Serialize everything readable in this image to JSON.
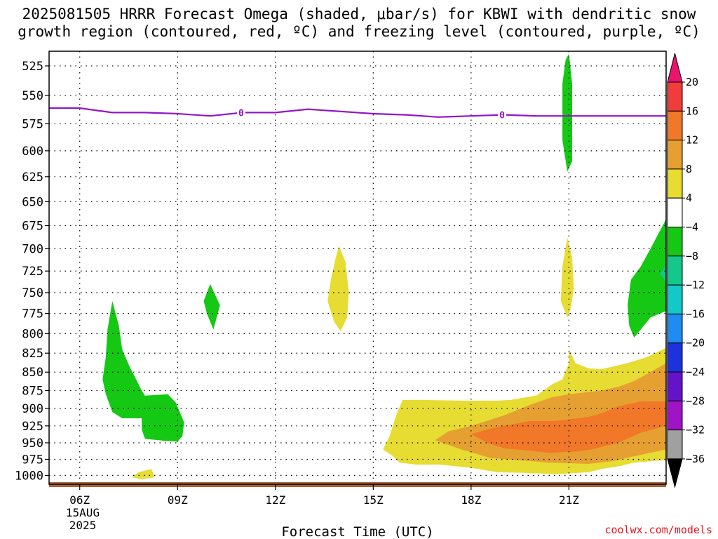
{
  "title": "2025081505 HRRR Forecast Omega (shaded, μbar/s) for KBWI with dendritic snow\ngrowth region (contoured, red, ºC) and freezing level (contoured, purple, ºC)",
  "credit": "coolwx.com/models",
  "chart_data": {
    "type": "area",
    "title": "2025081505 HRRR Forecast Omega (shaded, μbar/s) for KBWI with dendritic snow growth region (contoured, red, ºC) and freezing level (contoured, purple, ºC)",
    "xlabel": "Forecast Time (UTC)",
    "ylabel": "",
    "x_ticks": [
      "06Z",
      "09Z",
      "12Z",
      "15Z",
      "18Z",
      "21Z"
    ],
    "x_tick_hours": [
      6,
      9,
      12,
      15,
      18,
      21
    ],
    "x_date_label": [
      "15AUG",
      "2025"
    ],
    "xlim": [
      5.06,
      23.98
    ],
    "y_ticks": [
      525,
      550,
      575,
      600,
      625,
      650,
      675,
      700,
      725,
      750,
      775,
      800,
      825,
      850,
      875,
      900,
      925,
      950,
      975,
      1000
    ],
    "ylim": [
      1014,
      513
    ],
    "y_scale": "log",
    "grid": "dotted",
    "colorbar": {
      "labels": [
        "20",
        "16",
        "12",
        "8",
        "4",
        "−4",
        "−8",
        "−12",
        "−16",
        "−20",
        "−24",
        "−28",
        "−32",
        "−36"
      ],
      "colors": [
        "#e8146e",
        "#f03c3c",
        "#f07828",
        "#e6a032",
        "#e6dc32",
        "#ffffff",
        "#14c814",
        "#14c88c",
        "#14c8c8",
        "#1e8cf0",
        "#1e32dc",
        "#6414c8",
        "#a014c8",
        "#a0a0a0",
        "#000000"
      ]
    },
    "freezing_level": {
      "label": "0",
      "label_hours": [
        10.95,
        18.95
      ],
      "points": [
        [
          5.06,
          561
        ],
        [
          6.0,
          561
        ],
        [
          7.0,
          565
        ],
        [
          8.0,
          565
        ],
        [
          9.0,
          566
        ],
        [
          10.0,
          568
        ],
        [
          11.0,
          565
        ],
        [
          12.0,
          565
        ],
        [
          13.0,
          562
        ],
        [
          14.0,
          564
        ],
        [
          15.0,
          566
        ],
        [
          16.0,
          567
        ],
        [
          17.0,
          569
        ],
        [
          18.0,
          568
        ],
        [
          19.0,
          567
        ],
        [
          20.0,
          568
        ],
        [
          21.0,
          568
        ],
        [
          22.0,
          568
        ],
        [
          23.98,
          568
        ]
      ]
    },
    "shaded_regions": [
      {
        "class": "-8",
        "color": "#14c814",
        "points": [
          [
            7.0,
            760
          ],
          [
            7.2,
            790
          ],
          [
            7.3,
            820
          ],
          [
            7.5,
            840
          ],
          [
            7.9,
            875
          ],
          [
            8.0,
            882
          ],
          [
            8.7,
            880
          ],
          [
            8.95,
            892
          ],
          [
            9.2,
            920
          ],
          [
            9.15,
            940
          ],
          [
            9.0,
            948
          ],
          [
            8.6,
            947
          ],
          [
            8.0,
            944
          ],
          [
            7.9,
            930
          ],
          [
            7.9,
            914
          ],
          [
            7.3,
            914
          ],
          [
            7.0,
            905
          ],
          [
            6.8,
            880
          ],
          [
            6.7,
            860
          ],
          [
            6.8,
            830
          ],
          [
            6.85,
            795
          ]
        ]
      },
      {
        "class": "-8",
        "color": "#14c814",
        "points": [
          [
            10.0,
            740
          ],
          [
            10.3,
            765
          ],
          [
            10.1,
            795
          ],
          [
            9.9,
            775
          ],
          [
            9.8,
            760
          ]
        ]
      },
      {
        "class": "-8",
        "color": "#14c814",
        "points": [
          [
            21.0,
            515
          ],
          [
            21.1,
            540
          ],
          [
            21.1,
            610
          ],
          [
            20.95,
            620
          ],
          [
            20.8,
            590
          ],
          [
            20.8,
            540
          ],
          [
            20.9,
            520
          ]
        ]
      },
      {
        "class": "-8",
        "color": "#14c814",
        "points": [
          [
            23.98,
            668
          ],
          [
            23.5,
            700
          ],
          [
            23.2,
            720
          ],
          [
            22.9,
            735
          ],
          [
            22.8,
            765
          ],
          [
            22.85,
            790
          ],
          [
            23.0,
            805
          ],
          [
            23.2,
            795
          ],
          [
            23.5,
            780
          ],
          [
            23.98,
            772
          ]
        ]
      },
      {
        "class": "-12",
        "color": "#14c88c",
        "points": [
          [
            23.98,
            718
          ],
          [
            23.8,
            728
          ],
          [
            23.98,
            738
          ]
        ]
      },
      {
        "class": "4",
        "color": "#e6dc32",
        "points": [
          [
            13.95,
            697
          ],
          [
            14.15,
            715
          ],
          [
            14.25,
            750
          ],
          [
            14.2,
            780
          ],
          [
            14.0,
            797
          ],
          [
            13.8,
            785
          ],
          [
            13.6,
            760
          ],
          [
            13.7,
            735
          ],
          [
            13.85,
            710
          ]
        ]
      },
      {
        "class": "4",
        "color": "#e6dc32",
        "points": [
          [
            20.95,
            688
          ],
          [
            21.1,
            710
          ],
          [
            21.15,
            745
          ],
          [
            21.05,
            770
          ],
          [
            20.95,
            780
          ],
          [
            20.75,
            760
          ],
          [
            20.8,
            720
          ]
        ]
      },
      {
        "class": "4",
        "color": "#e6dc32",
        "points": [
          [
            7.8,
            995
          ],
          [
            8.2,
            990
          ],
          [
            8.3,
            1003
          ],
          [
            7.9,
            1006
          ],
          [
            7.6,
            1003
          ]
        ]
      },
      {
        "class": "4",
        "color": "#e6dc32",
        "points": [
          [
            15.9,
            888
          ],
          [
            16.5,
            888
          ],
          [
            17.8,
            889
          ],
          [
            18.8,
            889
          ],
          [
            19.2,
            888
          ],
          [
            20.0,
            882
          ],
          [
            20.5,
            866
          ],
          [
            20.8,
            860
          ],
          [
            21.0,
            838
          ],
          [
            21.0,
            820
          ],
          [
            21.2,
            838
          ],
          [
            21.6,
            845
          ],
          [
            22.0,
            846
          ],
          [
            22.8,
            838
          ],
          [
            23.4,
            830
          ],
          [
            23.98,
            818
          ],
          [
            23.98,
            976
          ],
          [
            23.0,
            980
          ],
          [
            22.6,
            985
          ],
          [
            22.0,
            990
          ],
          [
            21.6,
            995
          ],
          [
            20.6,
            998
          ],
          [
            19.6,
            996
          ],
          [
            18.8,
            995
          ],
          [
            18.0,
            988
          ],
          [
            17.0,
            983
          ],
          [
            16.3,
            983
          ],
          [
            15.8,
            980
          ],
          [
            15.6,
            970
          ],
          [
            15.3,
            960
          ],
          [
            15.5,
            940
          ],
          [
            15.7,
            910
          ]
        ]
      },
      {
        "class": "8",
        "color": "#e6a032",
        "points": [
          [
            23.98,
            838
          ],
          [
            23.5,
            850
          ],
          [
            23.0,
            862
          ],
          [
            22.5,
            870
          ],
          [
            22.0,
            875
          ],
          [
            21.0,
            880
          ],
          [
            20.5,
            884
          ],
          [
            19.8,
            895
          ],
          [
            19.0,
            910
          ],
          [
            18.0,
            925
          ],
          [
            17.3,
            933
          ],
          [
            16.9,
            946
          ],
          [
            17.7,
            960
          ],
          [
            18.6,
            973
          ],
          [
            20.4,
            980
          ],
          [
            21.6,
            982
          ],
          [
            22.3,
            978
          ],
          [
            23.5,
            965
          ],
          [
            23.98,
            960
          ]
        ]
      },
      {
        "class": "12",
        "color": "#f07828",
        "points": [
          [
            23.98,
            890
          ],
          [
            23.2,
            890
          ],
          [
            22.5,
            897
          ],
          [
            22.0,
            907
          ],
          [
            21.6,
            912
          ],
          [
            20.6,
            918
          ],
          [
            19.8,
            918
          ],
          [
            19.0,
            925
          ],
          [
            18.5,
            930
          ],
          [
            18.0,
            937
          ],
          [
            18.5,
            950
          ],
          [
            19.0,
            958
          ],
          [
            20.4,
            965
          ],
          [
            21.3,
            963
          ],
          [
            21.7,
            960
          ],
          [
            22.5,
            950
          ],
          [
            23.2,
            935
          ],
          [
            23.98,
            925
          ]
        ]
      }
    ]
  }
}
